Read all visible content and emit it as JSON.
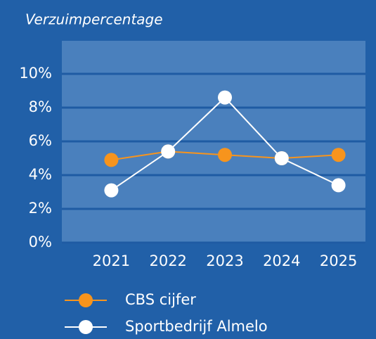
{
  "chart_data": {
    "type": "line",
    "title": "Verzuimpercentage",
    "categories": [
      "2021",
      "2022",
      "2023",
      "2024",
      "2025"
    ],
    "series": [
      {
        "name": "CBS cijfer",
        "color": "#f7941d",
        "values": [
          4.9,
          5.4,
          5.2,
          5.0,
          5.2
        ]
      },
      {
        "name": "Sportbedrijf Almelo",
        "color": "#ffffff",
        "values": [
          3.1,
          5.4,
          8.6,
          5.0,
          3.4
        ]
      }
    ],
    "ylim": [
      0,
      12
    ],
    "yticks": [
      {
        "value": 0,
        "label": "0%"
      },
      {
        "value": 2,
        "label": "2%"
      },
      {
        "value": 4,
        "label": "4%"
      },
      {
        "value": 6,
        "label": "6%"
      },
      {
        "value": 8,
        "label": "8%"
      },
      {
        "value": 10,
        "label": "10%"
      }
    ],
    "grid": true
  }
}
